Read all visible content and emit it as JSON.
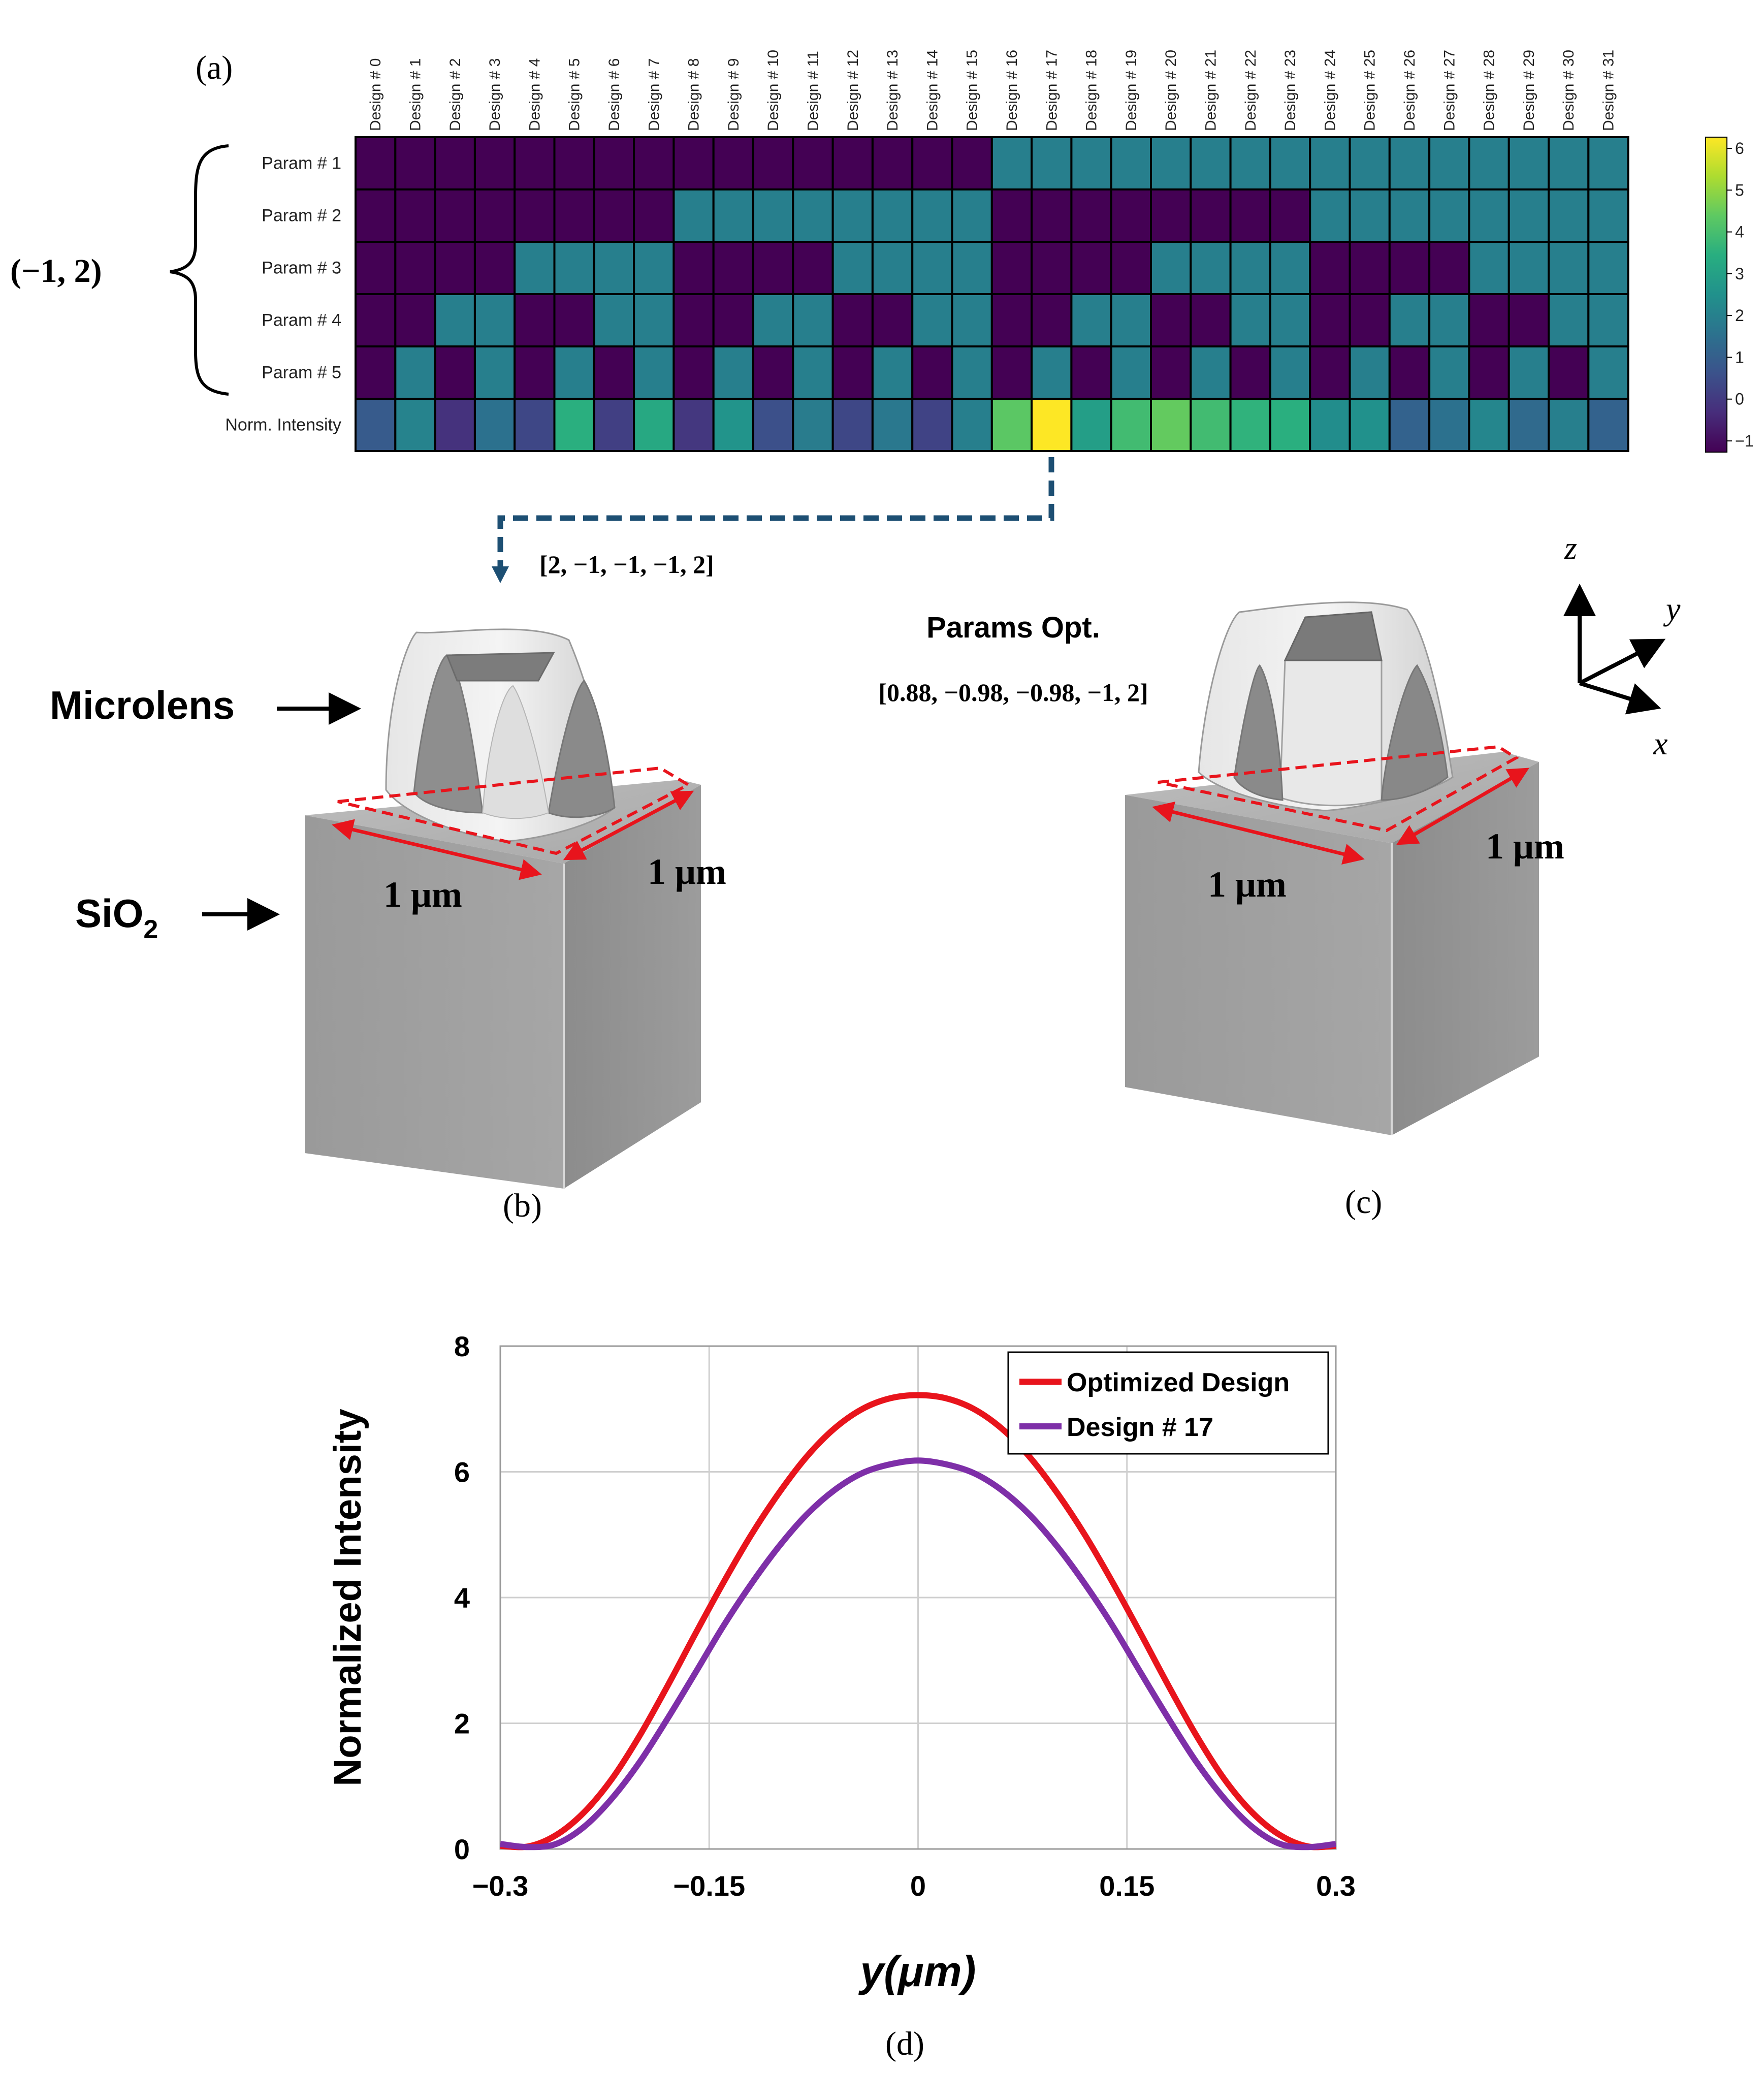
{
  "panel_labels": {
    "a": "(a)",
    "b": "(b)",
    "c": "(c)",
    "d": "(d)"
  },
  "range_label": "(−1, 2)",
  "bracket_vector": "[2, −1, −1, −1, 2]",
  "params_opt_title": "Params Opt.",
  "params_opt_vector": "[0.88, −0.98, −0.98, −1, 2]",
  "labels": {
    "microlens": "Microlens",
    "sio2_main": "SiO",
    "sio2_sub": "2",
    "dim_b_front": "1 μm",
    "dim_b_side": "1 μm",
    "dim_c_front": "1 μm",
    "dim_c_side": "1 μm"
  },
  "axes3d": {
    "z": "z",
    "y": "y",
    "x": "x"
  },
  "colors": {
    "viridis": [
      "#440154",
      "#472d7b",
      "#3b528b",
      "#2c728e",
      "#21918c",
      "#28ae80",
      "#5ec962",
      "#addc30",
      "#fde725"
    ],
    "red_curve": "#e8141c",
    "purple_curve": "#7e2fa8",
    "arrow_red": "#e8141c",
    "dashed_blue": "#1d4f73"
  },
  "chart_data": [
    {
      "type": "heatmap",
      "columns": [
        "Design # 0",
        "Design # 1",
        "Design # 2",
        "Design # 3",
        "Design # 4",
        "Design # 5",
        "Design # 6",
        "Design # 7",
        "Design # 8",
        "Design # 9",
        "Design # 10",
        "Design # 11",
        "Design # 12",
        "Design # 13",
        "Design # 14",
        "Design # 15",
        "Design # 16",
        "Design # 17",
        "Design # 18",
        "Design # 19",
        "Design # 20",
        "Design # 21",
        "Design # 22",
        "Design # 23",
        "Design # 24",
        "Design # 25",
        "Design # 26",
        "Design # 27",
        "Design # 28",
        "Design # 29",
        "Design # 30",
        "Design # 31"
      ],
      "rows": [
        "Param # 1",
        "Param # 2",
        "Param # 3",
        "Param # 4",
        "Param # 5",
        "Norm. Intensity"
      ],
      "values": [
        [
          -1,
          -1,
          -1,
          -1,
          -1,
          -1,
          -1,
          -1,
          -1,
          -1,
          -1,
          -1,
          -1,
          -1,
          -1,
          -1,
          2,
          2,
          2,
          2,
          2,
          2,
          2,
          2,
          2,
          2,
          2,
          2,
          2,
          2,
          2,
          2
        ],
        [
          -1,
          -1,
          -1,
          -1,
          -1,
          -1,
          -1,
          -1,
          2,
          2,
          2,
          2,
          2,
          2,
          2,
          2,
          -1,
          -1,
          -1,
          -1,
          -1,
          -1,
          -1,
          -1,
          2,
          2,
          2,
          2,
          2,
          2,
          2,
          2
        ],
        [
          -1,
          -1,
          -1,
          -1,
          2,
          2,
          2,
          2,
          -1,
          -1,
          -1,
          -1,
          2,
          2,
          2,
          2,
          -1,
          -1,
          -1,
          -1,
          2,
          2,
          2,
          2,
          -1,
          -1,
          -1,
          -1,
          2,
          2,
          2,
          2
        ],
        [
          -1,
          -1,
          2,
          2,
          -1,
          -1,
          2,
          2,
          -1,
          -1,
          2,
          2,
          -1,
          -1,
          2,
          2,
          -1,
          -1,
          2,
          2,
          -1,
          -1,
          2,
          2,
          -1,
          -1,
          2,
          2,
          -1,
          -1,
          2,
          2
        ],
        [
          -1,
          2,
          -1,
          2,
          -1,
          2,
          -1,
          2,
          -1,
          2,
          -1,
          2,
          -1,
          2,
          -1,
          2,
          -1,
          2,
          -1,
          2,
          -1,
          2,
          -1,
          2,
          -1,
          2,
          -1,
          2,
          -1,
          2,
          -1,
          2
        ],
        [
          1.0,
          2.1,
          0.0,
          1.6,
          0.5,
          3.4,
          0.3,
          3.2,
          0.1,
          2.6,
          0.7,
          1.9,
          0.5,
          1.8,
          0.4,
          2.0,
          4.2,
          6.2,
          2.9,
          3.8,
          4.3,
          3.8,
          3.5,
          3.4,
          2.4,
          2.5,
          1.2,
          1.6,
          2.2,
          1.4,
          2.0,
          1.2
        ]
      ],
      "colorbar": {
        "ticks": [
          "6",
          "5",
          "4",
          "3",
          "2",
          "1",
          "0",
          "−1"
        ],
        "range": [
          -1,
          6
        ],
        "colormap": "viridis"
      }
    },
    {
      "type": "line",
      "xlabel": "y(μm)",
      "ylabel": "Normalized Intensity",
      "xlim": [
        -0.3,
        0.3
      ],
      "ylim": [
        0,
        8
      ],
      "xticks": [
        "−0.3",
        "−0.15",
        "0",
        "0.15",
        "0.3"
      ],
      "yticks": [
        "0",
        "2",
        "4",
        "6",
        "8"
      ],
      "grid": true,
      "legend_position": "top-right",
      "series": [
        {
          "name": "Optimized Design",
          "x": [
            -0.3,
            -0.28,
            -0.26,
            -0.24,
            -0.22,
            -0.2,
            -0.18,
            -0.16,
            -0.14,
            -0.12,
            -0.1,
            -0.08,
            -0.06,
            -0.04,
            -0.02,
            0,
            0.02,
            0.04,
            0.06,
            0.08,
            0.1,
            0.12,
            0.14,
            0.16,
            0.18,
            0.2,
            0.22,
            0.24,
            0.26,
            0.28,
            0.3
          ],
          "y": [
            0.05,
            0.04,
            0.22,
            0.58,
            1.11,
            1.8,
            2.59,
            3.42,
            4.23,
            4.99,
            5.66,
            6.24,
            6.69,
            7.0,
            7.17,
            7.22,
            7.17,
            7.0,
            6.69,
            6.24,
            5.66,
            4.99,
            4.23,
            3.42,
            2.59,
            1.8,
            1.11,
            0.58,
            0.22,
            0.04,
            0.05
          ]
        },
        {
          "name": "Design # 17",
          "x": [
            -0.3,
            -0.28,
            -0.26,
            -0.24,
            -0.22,
            -0.2,
            -0.18,
            -0.16,
            -0.14,
            -0.12,
            -0.1,
            -0.08,
            -0.06,
            -0.04,
            -0.02,
            0,
            0.02,
            0.04,
            0.06,
            0.08,
            0.1,
            0.12,
            0.14,
            0.16,
            0.18,
            0.2,
            0.22,
            0.24,
            0.26,
            0.28,
            0.3
          ],
          "y": [
            0.08,
            0.03,
            0.08,
            0.35,
            0.8,
            1.38,
            2.07,
            2.8,
            3.54,
            4.21,
            4.81,
            5.32,
            5.71,
            5.98,
            6.12,
            6.18,
            6.12,
            5.98,
            5.71,
            5.32,
            4.81,
            4.21,
            3.54,
            2.8,
            2.07,
            1.38,
            0.8,
            0.35,
            0.08,
            0.03,
            0.08
          ]
        }
      ]
    }
  ]
}
